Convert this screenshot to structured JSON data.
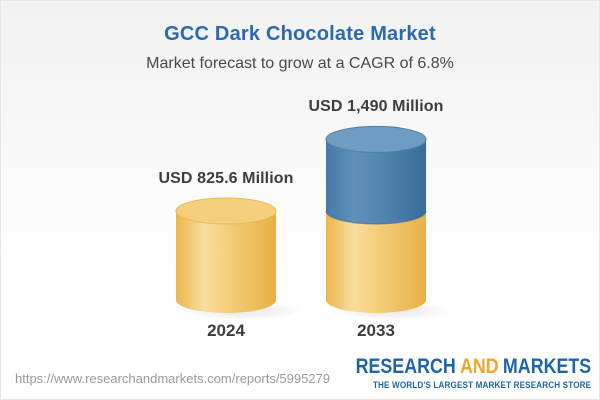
{
  "header": {
    "title": "GCC Dark Chocolate Market",
    "subtitle": "Market forecast to grow at a CAGR of 6.8%"
  },
  "chart_data": {
    "type": "bar",
    "subtype": "3d-cylinder-stacked",
    "title": "GCC Dark Chocolate Market",
    "subtitle": "Market forecast to grow at a CAGR of 6.8%",
    "unit": "USD Million",
    "categories": [
      "2024",
      "2033"
    ],
    "values": [
      825.6,
      1490
    ],
    "value_labels": [
      "USD 825.6 Million",
      "USD 1,490 Million"
    ],
    "stacks": [
      [
        {
          "color": "gold",
          "to": 825.6
        }
      ],
      [
        {
          "color": "gold",
          "to": 825.6
        },
        {
          "color": "blue",
          "to": 1490
        }
      ]
    ],
    "ylim": [
      0,
      1490
    ],
    "axes_visible": false,
    "grid": false,
    "legend": null,
    "cagr_annotation": "6.8%"
  },
  "footer": {
    "url": "https://www.researchandmarkets.com/reports/5995279",
    "logo": {
      "word1": "RESEARCH",
      "word2": "AND",
      "word3": "MARKETS",
      "tagline": "THE WORLD'S LARGEST MARKET RESEARCH STORE"
    }
  },
  "colors": {
    "title_blue": "#2a6aad",
    "text_dark": "#3d3d3d",
    "subtitle_gray": "#484848",
    "url_gray": "#9a9a9a",
    "logo_blue": "#1f64a7",
    "logo_orange": "#f0a72c",
    "background_top": "#f2f2f3",
    "background_bottom": "#ffffff",
    "gold_body": [
      "#eab64c",
      "#f8dd9e",
      "#f3cc78",
      "#e7b045"
    ],
    "gold_top": "#f4cf7e",
    "gold_rim": "#e9ba52",
    "blue_body": [
      "#4679a6",
      "#5f91bb",
      "#5285b1",
      "#3a6c99"
    ],
    "blue_top": "#6f9cc2",
    "blue_rim": "#517fa9",
    "blue_seam": "#2f6190"
  }
}
